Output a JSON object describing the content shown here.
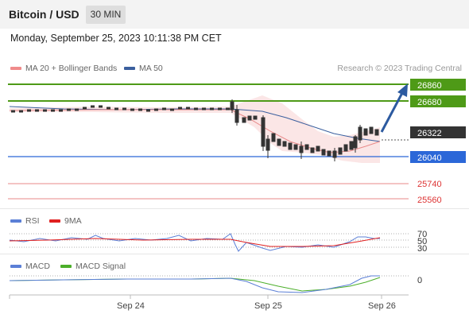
{
  "header": {
    "title": "Bitcoin / USD",
    "timeframe": "30 MIN"
  },
  "datetime": "Monday, September 25, 2023 10:11:38 PM CET",
  "legend_main": [
    {
      "label": "MA 20 + Bollinger Bands",
      "color": "#f08b8b"
    },
    {
      "label": "MA 50",
      "color": "#3b5f9e"
    }
  ],
  "credit": "Research © 2023 Trading Central",
  "price_levels": {
    "target_2": "26860",
    "target_1": "26680",
    "current": "26322",
    "pivot": "26040",
    "support_1": "25740",
    "support_2": "25560"
  },
  "rsi_legend": [
    {
      "label": "RSI",
      "color": "#5b7fd6"
    },
    {
      "label": "9MA",
      "color": "#e02020"
    }
  ],
  "rsi_levels": [
    "70",
    "50",
    "30"
  ],
  "macd_legend": [
    {
      "label": "MACD",
      "color": "#5b7fd6"
    },
    {
      "label": "MACD Signal",
      "color": "#4caf2a"
    }
  ],
  "macd_level": "0",
  "x_axis": [
    "Sep 24",
    "Sep 25",
    "Sep 26"
  ],
  "colors": {
    "resistance": "#4e9a17",
    "pivot": "#2b67d8",
    "support": "#e05555",
    "current": "#333333",
    "arrow": "#2c5aa0"
  }
}
